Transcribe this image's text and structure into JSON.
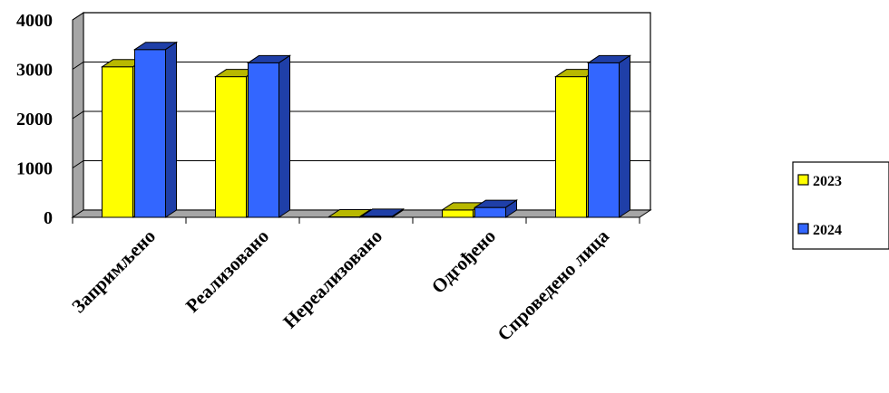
{
  "chart_data": {
    "type": "bar",
    "style": "3d-clustered-column",
    "categories": [
      "Запримљено",
      "Реализовано",
      "Нереализовано",
      "Одгођено",
      "Спроведено лица"
    ],
    "series": [
      {
        "name": "2023",
        "values": [
          3050,
          2850,
          10,
          150,
          2850
        ],
        "color": "#ffff00",
        "dark": "#b8b800"
      },
      {
        "name": "2024",
        "values": [
          3400,
          3130,
          20,
          200,
          3130
        ],
        "color": "#3366ff",
        "dark": "#1f3fa8"
      }
    ],
    "ylim": [
      0,
      4000
    ],
    "yticks": [
      "0",
      "1000",
      "2000",
      "3000",
      "4000"
    ],
    "grid": true,
    "legend_position": "right"
  }
}
